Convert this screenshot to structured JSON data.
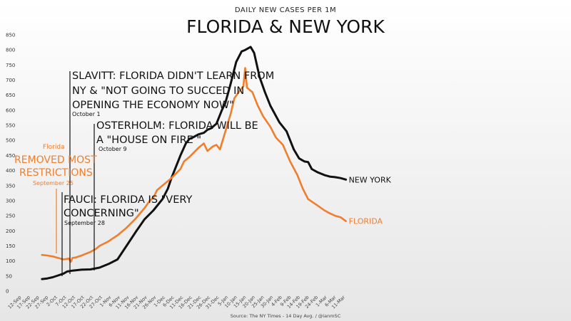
{
  "chart_data": {
    "type": "line",
    "subtitle": "DAILY NEW CASES PER 1M",
    "title": "FLORIDA & NEW YORK",
    "source": "Source: The NY Times - 14 Day Avg. / @ianmSC",
    "ylim": [
      0,
      850
    ],
    "yticks": [
      "0",
      "50",
      "100",
      "150",
      "200",
      "250",
      "300",
      "350",
      "400",
      "450",
      "500",
      "550",
      "600",
      "650",
      "700",
      "750",
      "800",
      "850"
    ],
    "x_tick_labels": [
      "12-Sep",
      "17-Sep",
      "22-Sep",
      "27-Sep",
      "2-Oct",
      "7-Oct",
      "12-Oct",
      "17-Oct",
      "22-Oct",
      "27-Oct",
      "1-Nov",
      "6-Nov",
      "11-Nov",
      "16-Nov",
      "21-Nov",
      "26-Nov",
      "1-Dec",
      "6-Dec",
      "11-Dec",
      "16-Dec",
      "21-Dec",
      "26-Dec",
      "31-Dec",
      "5-Jan",
      "10-Jan",
      "15-Jan",
      "20-Jan",
      "25-Jan",
      "30-Jan",
      "4-Feb",
      "9-Feb",
      "14-Feb",
      "19-Feb",
      "24-Feb",
      "1-Mar",
      "6-Mar",
      "11-Mar"
    ],
    "grid": false,
    "series": [
      {
        "name": "NEW YORK",
        "color": "#111111",
        "points": [
          [
            "25-Sep",
            40
          ],
          [
            "28-Sep",
            42
          ],
          [
            "1-Oct",
            46
          ],
          [
            "4-Oct",
            52
          ],
          [
            "7-Oct",
            58
          ],
          [
            "9-Oct",
            65
          ],
          [
            "12-Oct",
            68
          ],
          [
            "17-Oct",
            71
          ],
          [
            "22-Oct",
            72
          ],
          [
            "27-Oct",
            78
          ],
          [
            "1-Nov",
            90
          ],
          [
            "6-Nov",
            105
          ],
          [
            "11-Nov",
            150
          ],
          [
            "16-Nov",
            195
          ],
          [
            "21-Nov",
            238
          ],
          [
            "26-Nov",
            268
          ],
          [
            "1-Dec",
            305
          ],
          [
            "4-Dec",
            340
          ],
          [
            "6-Dec",
            375
          ],
          [
            "11-Dec",
            450
          ],
          [
            "14-Dec",
            490
          ],
          [
            "16-Dec",
            505
          ],
          [
            "18-Dec",
            510
          ],
          [
            "21-Dec",
            520
          ],
          [
            "24-Dec",
            525
          ],
          [
            "26-Dec",
            535
          ],
          [
            "28-Dec",
            540
          ],
          [
            "31-Dec",
            555
          ],
          [
            "3-Jan",
            600
          ],
          [
            "5-Jan",
            625
          ],
          [
            "8-Jan",
            690
          ],
          [
            "11-Jan",
            760
          ],
          [
            "14-Jan",
            795
          ],
          [
            "16-Jan",
            800
          ],
          [
            "19-Jan",
            810
          ],
          [
            "21-Jan",
            790
          ],
          [
            "24-Jan",
            710
          ],
          [
            "27-Jan",
            660
          ],
          [
            "30-Jan",
            615
          ],
          [
            "4-Feb",
            560
          ],
          [
            "8-Feb",
            530
          ],
          [
            "12-Feb",
            470
          ],
          [
            "15-Feb",
            440
          ],
          [
            "18-Feb",
            430
          ],
          [
            "20-Feb",
            428
          ],
          [
            "22-Feb",
            405
          ],
          [
            "25-Feb",
            395
          ],
          [
            "1-Mar",
            385
          ],
          [
            "4-Mar",
            380
          ],
          [
            "7-Mar",
            378
          ],
          [
            "10-Mar",
            375
          ],
          [
            "13-Mar",
            370
          ]
        ]
      },
      {
        "name": "FLORIDA",
        "color": "#ef7e2d",
        "points": [
          [
            "25-Sep",
            120
          ],
          [
            "28-Sep",
            118
          ],
          [
            "1-Oct",
            115
          ],
          [
            "4-Oct",
            110
          ],
          [
            "7-Oct",
            105
          ],
          [
            "10-Oct",
            108
          ],
          [
            "11-Oct",
            97
          ],
          [
            "12-Oct",
            110
          ],
          [
            "14-Oct",
            112
          ],
          [
            "17-Oct",
            118
          ],
          [
            "22-Oct",
            130
          ],
          [
            "25-Oct",
            140
          ],
          [
            "27-Oct",
            150
          ],
          [
            "1-Nov",
            165
          ],
          [
            "6-Nov",
            185
          ],
          [
            "11-Nov",
            210
          ],
          [
            "16-Nov",
            240
          ],
          [
            "21-Nov",
            275
          ],
          [
            "24-Nov",
            300
          ],
          [
            "26-Nov",
            310
          ],
          [
            "28-Nov",
            335
          ],
          [
            "1-Dec",
            350
          ],
          [
            "6-Dec",
            375
          ],
          [
            "11-Dec",
            405
          ],
          [
            "13-Dec",
            430
          ],
          [
            "16-Dec",
            445
          ],
          [
            "21-Dec",
            475
          ],
          [
            "24-Dec",
            490
          ],
          [
            "26-Dec",
            465
          ],
          [
            "29-Dec",
            480
          ],
          [
            "31-Dec",
            485
          ],
          [
            "2-Jan",
            470
          ],
          [
            "5-Jan",
            530
          ],
          [
            "8-Jan",
            590
          ],
          [
            "10-Jan",
            640
          ],
          [
            "13-Jan",
            665
          ],
          [
            "15-Jan",
            680
          ],
          [
            "16-Jan",
            740
          ],
          [
            "17-Jan",
            675
          ],
          [
            "20-Jan",
            660
          ],
          [
            "23-Jan",
            615
          ],
          [
            "26-Jan",
            580
          ],
          [
            "30-Jan",
            545
          ],
          [
            "2-Feb",
            510
          ],
          [
            "6-Feb",
            485
          ],
          [
            "10-Feb",
            430
          ],
          [
            "14-Feb",
            385
          ],
          [
            "17-Feb",
            340
          ],
          [
            "20-Feb",
            305
          ],
          [
            "25-Feb",
            285
          ],
          [
            "1-Mar",
            268
          ],
          [
            "4-Mar",
            258
          ],
          [
            "7-Mar",
            250
          ],
          [
            "10-Mar",
            245
          ],
          [
            "13-Mar",
            232
          ]
        ]
      }
    ],
    "annotations": [
      {
        "lines": [
          "SLAVITT: FLORIDA DIDN'T LEARN FROM",
          "NY & \"NOT GOING TO SUCCED IN",
          "OPENING THE ECONOMY NOW\""
        ],
        "date": "October 1"
      },
      {
        "lines": [
          "OSTERHOLM:  FLORIDA WILL BE",
          "A \"HOUSE ON FIRE \""
        ],
        "date": "October 9"
      },
      {
        "lines": [
          "FAUCI: FLORIDA IS \"VERY",
          "CONCERNING\""
        ],
        "date": "September 28"
      },
      {
        "prefix": "Florida",
        "lines": [
          "REMOVED MOST",
          "RESTRICTIONS"
        ],
        "date": "September 25"
      }
    ]
  }
}
